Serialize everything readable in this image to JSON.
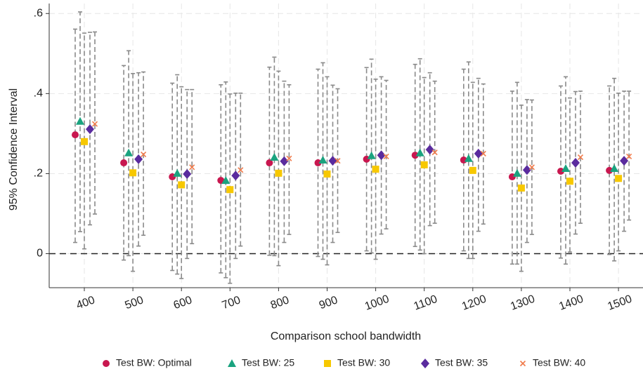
{
  "chart_data": {
    "type": "errorbar",
    "x_label": "Comparison school bandwidth",
    "y_label": "95% Confidence Interval",
    "categories": [
      "400",
      "500",
      "600",
      "700",
      "800",
      "900",
      "1000",
      "1100",
      "1200",
      "1300",
      "1400",
      "1500"
    ],
    "ylim": [
      -0.085,
      0.625
    ],
    "yticks": [
      0,
      {
        "value": 0.2,
        "label": ".2"
      },
      {
        "value": 0.4,
        "label": ".4"
      },
      {
        "value": 0.6,
        "label": ".6"
      }
    ],
    "yline": 0,
    "grid": true,
    "legend_position": "bottom",
    "series": [
      {
        "name": "Test BW: Optimal",
        "color": "#c8174f",
        "marker": "circle",
        "values": [
          0.297,
          0.227,
          0.192,
          0.183,
          0.227,
          0.227,
          0.236,
          0.246,
          0.234,
          0.192,
          0.206,
          0.208
        ],
        "lower": [
          0.028,
          -0.016,
          -0.042,
          -0.048,
          -0.004,
          -0.007,
          0.007,
          0.018,
          0.007,
          -0.026,
          -0.011,
          -0.002
        ],
        "upper": [
          0.561,
          0.47,
          0.426,
          0.422,
          0.466,
          0.461,
          0.465,
          0.473,
          0.461,
          0.406,
          0.419,
          0.419
        ]
      },
      {
        "name": "Test BW: 25",
        "color": "#1aa37f",
        "marker": "triangle",
        "values": [
          0.331,
          0.252,
          0.201,
          0.183,
          0.241,
          0.234,
          0.245,
          0.252,
          0.238,
          0.201,
          0.213,
          0.213
        ],
        "lower": [
          0.055,
          -0.005,
          -0.051,
          -0.06,
          -0.005,
          -0.014,
          0.002,
          0.009,
          -0.012,
          -0.026,
          -0.026,
          -0.018
        ],
        "upper": [
          0.604,
          0.507,
          0.447,
          0.429,
          0.491,
          0.477,
          0.486,
          0.487,
          0.479,
          0.428,
          0.442,
          0.438
        ]
      },
      {
        "name": "Test BW: 30",
        "color": "#f7c800",
        "marker": "square",
        "values": [
          0.28,
          0.202,
          0.172,
          0.16,
          0.201,
          0.199,
          0.211,
          0.222,
          0.208,
          0.164,
          0.181,
          0.188
        ],
        "lower": [
          0.012,
          -0.044,
          -0.062,
          -0.074,
          -0.03,
          -0.028,
          -0.014,
          0.0,
          -0.012,
          -0.044,
          0.004,
          0.007
        ],
        "upper": [
          0.551,
          0.45,
          0.417,
          0.399,
          0.456,
          0.442,
          0.436,
          0.44,
          0.428,
          0.371,
          0.389,
          0.401
        ]
      },
      {
        "name": "Test BW: 35",
        "color": "#5a2b9e",
        "marker": "diamond",
        "values": [
          0.311,
          0.236,
          0.199,
          0.195,
          0.231,
          0.232,
          0.246,
          0.26,
          0.25,
          0.209,
          0.227,
          0.232
        ],
        "lower": [
          0.072,
          0.019,
          -0.012,
          -0.012,
          0.028,
          0.028,
          0.049,
          0.07,
          0.056,
          0.028,
          0.049,
          0.056
        ],
        "upper": [
          0.553,
          0.452,
          0.41,
          0.401,
          0.431,
          0.421,
          0.442,
          0.452,
          0.438,
          0.385,
          0.405,
          0.406
        ]
      },
      {
        "name": "Test BW: 40",
        "color": "#f07a4a",
        "marker": "x",
        "values": [
          0.324,
          0.248,
          0.216,
          0.209,
          0.238,
          0.232,
          0.243,
          0.253,
          0.25,
          0.216,
          0.241,
          0.243
        ],
        "lower": [
          0.099,
          0.046,
          0.025,
          0.019,
          0.048,
          0.053,
          0.062,
          0.076,
          0.074,
          0.048,
          0.076,
          0.084
        ],
        "upper": [
          0.554,
          0.454,
          0.41,
          0.401,
          0.422,
          0.412,
          0.433,
          0.431,
          0.424,
          0.384,
          0.406,
          0.406
        ]
      }
    ]
  }
}
